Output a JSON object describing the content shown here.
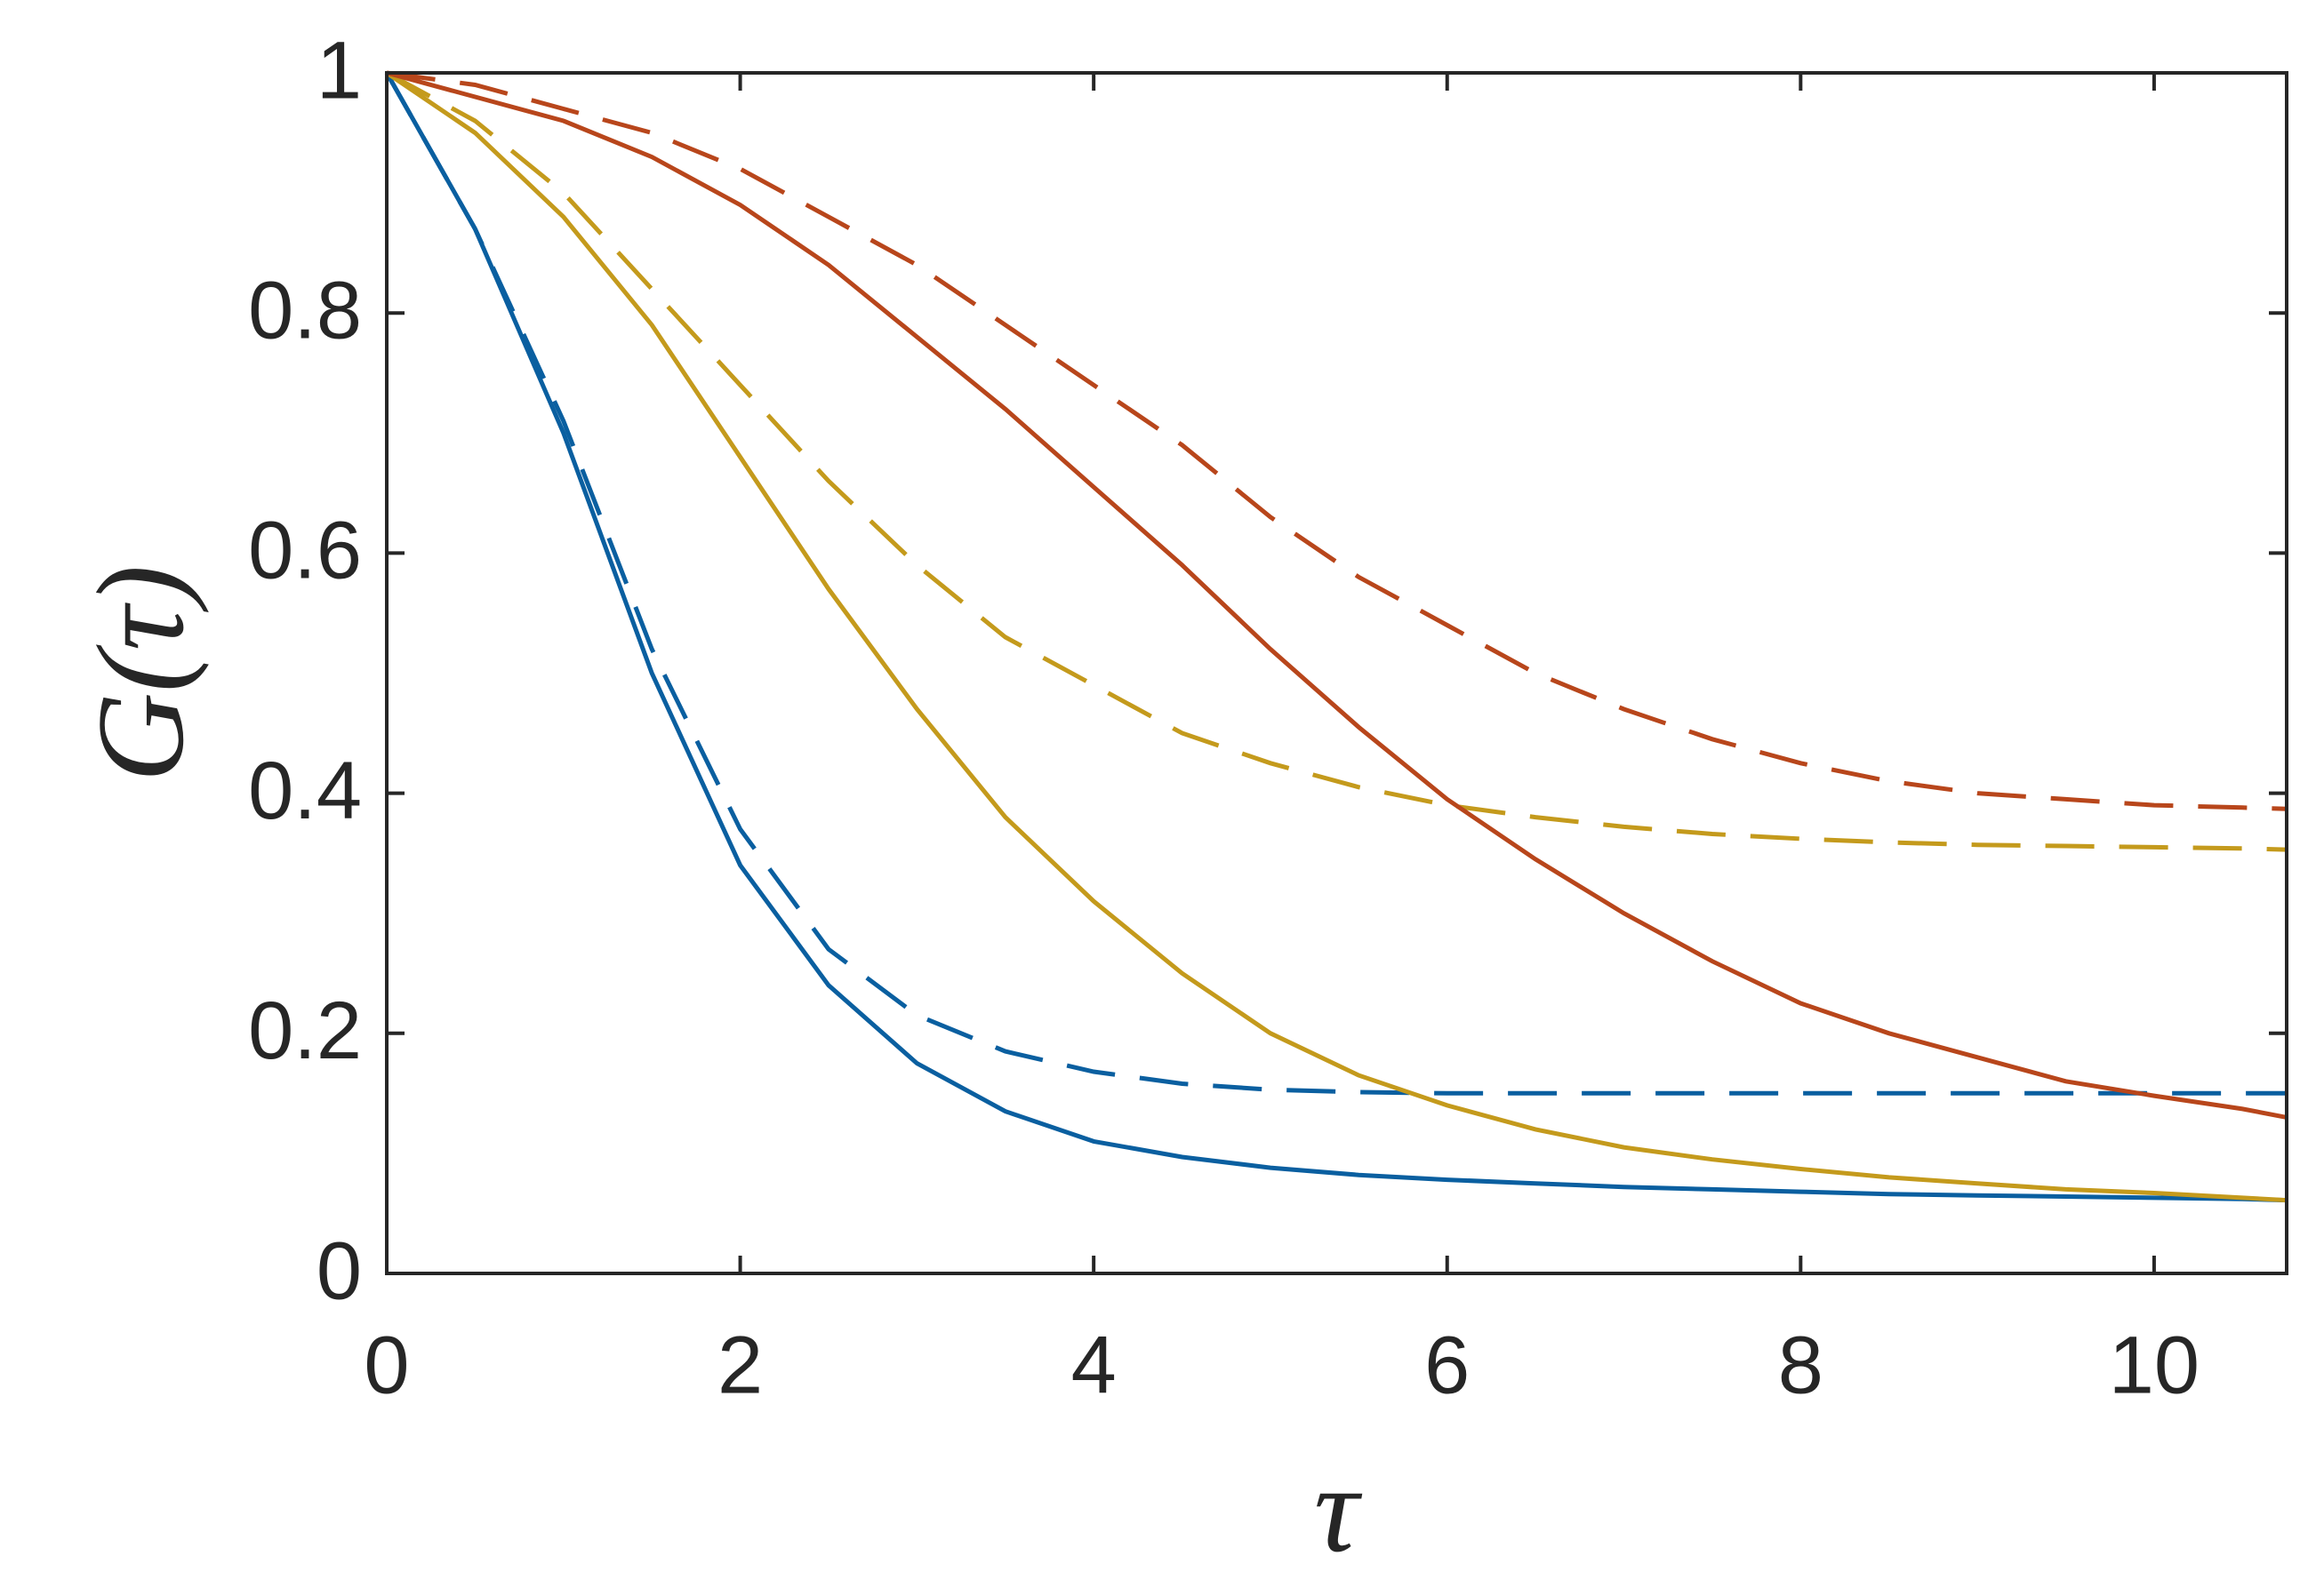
{
  "chart_data": {
    "type": "line",
    "xlabel": "τ",
    "ylabel": "G(τ)",
    "x": [
      0,
      0.5,
      1,
      1.5,
      2,
      2.5,
      3,
      3.5,
      4,
      4.5,
      5,
      5.5,
      6,
      6.5,
      7,
      7.5,
      8,
      8.5,
      9,
      9.5,
      10,
      10.5,
      10.75
    ],
    "xlim": [
      0,
      10.75
    ],
    "xticks": [
      0,
      2,
      4,
      6,
      8,
      10
    ],
    "ylim": [
      0,
      1
    ],
    "yticks": [
      0,
      0.2,
      0.4,
      0.6,
      0.8,
      1
    ],
    "series": [
      {
        "color": "#0a5fa0",
        "line_style": "solid",
        "values": [
          1,
          0.87,
          0.7,
          0.5,
          0.34,
          0.24,
          0.175,
          0.135,
          0.11,
          0.097,
          0.088,
          0.082,
          0.078,
          0.075,
          0.072,
          0.07,
          0.068,
          0.066,
          0.065,
          0.064,
          0.063,
          0.062,
          0.061
        ]
      },
      {
        "color": "#0a5fa0",
        "line_style": "dashed",
        "values": [
          1,
          0.87,
          0.71,
          0.52,
          0.37,
          0.27,
          0.215,
          0.185,
          0.168,
          0.158,
          0.153,
          0.151,
          0.15,
          0.15,
          0.15,
          0.15,
          0.15,
          0.15,
          0.15,
          0.15,
          0.15,
          0.15,
          0.15
        ]
      },
      {
        "color": "#c49a1c",
        "line_style": "solid",
        "values": [
          1,
          0.95,
          0.88,
          0.79,
          0.68,
          0.57,
          0.47,
          0.38,
          0.31,
          0.25,
          0.2,
          0.165,
          0.14,
          0.12,
          0.105,
          0.095,
          0.087,
          0.08,
          0.075,
          0.07,
          0.067,
          0.063,
          0.061
        ]
      },
      {
        "color": "#c49a1c",
        "line_style": "dashed",
        "values": [
          1,
          0.96,
          0.9,
          0.82,
          0.74,
          0.66,
          0.59,
          0.53,
          0.49,
          0.45,
          0.425,
          0.405,
          0.39,
          0.38,
          0.372,
          0.366,
          0.362,
          0.359,
          0.357,
          0.356,
          0.355,
          0.354,
          0.353
        ]
      },
      {
        "color": "#b8461b",
        "line_style": "solid",
        "values": [
          1,
          0.98,
          0.96,
          0.93,
          0.89,
          0.84,
          0.78,
          0.72,
          0.655,
          0.59,
          0.52,
          0.455,
          0.395,
          0.345,
          0.3,
          0.26,
          0.225,
          0.2,
          0.18,
          0.16,
          0.148,
          0.137,
          0.13
        ]
      },
      {
        "color": "#b8461b",
        "line_style": "dashed",
        "values": [
          1,
          0.99,
          0.97,
          0.95,
          0.92,
          0.88,
          0.84,
          0.79,
          0.74,
          0.69,
          0.63,
          0.58,
          0.54,
          0.5,
          0.47,
          0.445,
          0.425,
          0.41,
          0.4,
          0.395,
          0.39,
          0.388,
          0.387
        ]
      }
    ]
  }
}
